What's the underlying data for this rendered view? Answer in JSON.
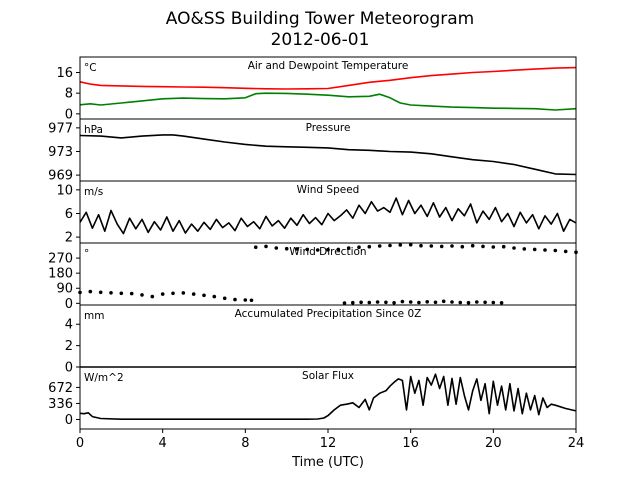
{
  "title": "AO&SS Building Tower Meteorogram",
  "subtitle": "2012-06-01",
  "xlabel": "Time (UTC)",
  "x_ticks": [
    0,
    4,
    8,
    12,
    16,
    20,
    24
  ],
  "chart_data": {
    "type": "line",
    "title": "AO&SS Building Tower Meteorogram",
    "subtitle": "2012-06-01",
    "xlabel": "Time (UTC)",
    "xlim": [
      0,
      24
    ],
    "panels": [
      {
        "title": "Air and Dewpoint Temperature",
        "unit": "°C",
        "ylim": [
          -2,
          22
        ],
        "yticks": [
          0,
          8,
          16
        ],
        "series": [
          {
            "color": "#ff0000",
            "style": "line",
            "x": [
              0,
              0.5,
              1,
              2,
              3,
              4,
              5,
              6,
              7,
              8,
              9,
              10,
              11,
              12,
              13,
              14,
              15,
              16,
              17,
              18,
              19,
              20,
              21,
              22,
              23,
              24
            ],
            "y": [
              12.4,
              11.5,
              11.0,
              10.8,
              10.6,
              10.5,
              10.4,
              10.3,
              10.1,
              9.9,
              9.7,
              9.6,
              9.7,
              9.8,
              11.0,
              12.2,
              13.0,
              14.0,
              14.8,
              15.4,
              16.0,
              16.4,
              16.9,
              17.3,
              17.7,
              17.9
            ]
          },
          {
            "color": "#008000",
            "style": "line",
            "x": [
              0,
              0.5,
              1,
              2,
              3,
              4,
              5,
              6,
              7,
              8,
              8.5,
              9,
              10,
              11,
              12,
              13,
              14,
              14.5,
              15,
              15.5,
              16,
              17,
              18,
              19,
              20,
              21,
              22,
              23,
              24
            ],
            "y": [
              3.5,
              3.9,
              3.4,
              4.2,
              5.0,
              5.8,
              6.1,
              5.9,
              5.8,
              6.2,
              7.8,
              8.0,
              7.9,
              7.6,
              7.2,
              6.6,
              6.8,
              7.6,
              6.2,
              4.2,
              3.4,
              3.0,
              2.6,
              2.4,
              2.2,
              2.1,
              2.0,
              1.5,
              2.0
            ]
          }
        ]
      },
      {
        "title": "Pressure",
        "unit": "hPa",
        "ylim": [
          968,
          978.5
        ],
        "yticks": [
          969,
          973,
          977
        ],
        "series": [
          {
            "color": "#000000",
            "style": "line",
            "x": [
              0,
              1,
              2,
              3,
              4,
              4.5,
              5,
              6,
              7,
              8,
              9,
              10,
              11,
              12,
              13,
              14,
              15,
              16,
              17,
              18,
              19,
              20,
              21,
              22,
              23,
              24
            ],
            "y": [
              975.7,
              975.6,
              975.3,
              975.6,
              975.8,
              975.8,
              975.6,
              975.1,
              974.6,
              974.2,
              973.9,
              973.8,
              973.7,
              973.6,
              973.3,
              973.2,
              973.0,
              972.9,
              972.6,
              972.1,
              971.6,
              971.3,
              970.8,
              970.0,
              969.2,
              969.1
            ]
          }
        ]
      },
      {
        "title": "Wind Speed",
        "unit": "m/s",
        "ylim": [
          1,
          11.5
        ],
        "yticks": [
          2,
          6,
          10
        ],
        "series": [
          {
            "color": "#000000",
            "style": "line",
            "x": [
              0,
              0.3,
              0.6,
              0.9,
              1.2,
              1.5,
              1.8,
              2.1,
              2.4,
              2.7,
              3,
              3.3,
              3.6,
              3.9,
              4.2,
              4.5,
              4.8,
              5.1,
              5.4,
              5.7,
              6,
              6.3,
              6.6,
              6.9,
              7.2,
              7.5,
              7.8,
              8.1,
              8.4,
              8.7,
              9,
              9.3,
              9.6,
              9.9,
              10.2,
              10.5,
              10.8,
              11.1,
              11.4,
              11.7,
              12,
              12.3,
              12.6,
              12.9,
              13.2,
              13.5,
              13.8,
              14.1,
              14.4,
              14.7,
              15,
              15.3,
              15.6,
              15.9,
              16.2,
              16.5,
              16.8,
              17.1,
              17.4,
              17.7,
              18,
              18.3,
              18.6,
              18.9,
              19.2,
              19.5,
              19.8,
              20.1,
              20.4,
              20.7,
              21,
              21.3,
              21.6,
              21.9,
              22.2,
              22.5,
              22.8,
              23.1,
              23.4,
              23.7,
              24
            ],
            "y": [
              4.5,
              6.2,
              3.5,
              5.8,
              3.0,
              6.5,
              4.2,
              2.6,
              5.2,
              3.4,
              5.0,
              2.8,
              4.6,
              3.2,
              5.4,
              3.0,
              4.8,
              2.7,
              4.2,
              3.0,
              4.5,
              3.3,
              5.0,
              3.6,
              4.4,
              3.1,
              5.2,
              3.8,
              4.6,
              3.4,
              5.5,
              3.9,
              4.8,
              3.5,
              5.2,
              4.0,
              5.8,
              4.3,
              5.3,
              4.1,
              6.0,
              4.8,
              5.6,
              6.6,
              5.2,
              7.4,
              6.0,
              8.0,
              6.4,
              7.0,
              6.2,
              8.6,
              5.8,
              8.2,
              6.0,
              7.4,
              5.5,
              7.8,
              5.4,
              7.0,
              4.8,
              6.8,
              5.6,
              7.6,
              4.4,
              6.4,
              5.0,
              7.0,
              4.6,
              6.0,
              3.8,
              6.2,
              4.4,
              5.8,
              3.4,
              5.6,
              4.2,
              6.0,
              3.0,
              5.0,
              4.4
            ]
          }
        ]
      },
      {
        "title": "Wind Direction",
        "unit": "°",
        "ylim": [
          -10,
          360
        ],
        "yticks": [
          0,
          90,
          180,
          270
        ],
        "series": [
          {
            "color": "#000000",
            "style": "dots",
            "x": [
              0,
              0.5,
              1,
              1.5,
              2,
              2.5,
              3,
              3.5,
              4,
              4.5,
              5,
              5.5,
              6,
              6.5,
              7,
              7.5,
              8,
              8.3,
              8.5,
              9,
              9.5,
              10,
              10.5,
              11,
              11.5,
              12,
              12.5,
              13,
              13.5,
              14,
              14.5,
              15,
              15.5,
              16,
              16.5,
              17,
              17.5,
              18,
              18.5,
              19,
              19.5,
              20,
              20.5,
              21,
              21.5,
              22,
              22.5,
              23,
              23.5,
              24
            ],
            "y": [
              65,
              70,
              66,
              63,
              60,
              58,
              50,
              40,
              55,
              60,
              62,
              55,
              48,
              40,
              30,
              22,
              20,
              18,
              335,
              340,
              330,
              326,
              325,
              322,
              318,
              320,
              322,
              330,
              335,
              338,
              342,
              345,
              348,
              350,
              344,
              342,
              340,
              342,
              338,
              344,
              340,
              336,
              338,
              330,
              325,
              322,
              318,
              315,
              310,
              305
            ]
          },
          {
            "color": "#000000",
            "style": "dots",
            "x": [
              12.8,
              13.2,
              13.6,
              14,
              14.4,
              14.8,
              15.2,
              15.6,
              16,
              16.4,
              16.8,
              17.2,
              17.6,
              18,
              18.4,
              18.8,
              19.2,
              19.6,
              20,
              20.4
            ],
            "y": [
              2,
              4,
              6,
              5,
              8,
              6,
              3,
              10,
              8,
              5,
              9,
              6,
              12,
              8,
              5,
              4,
              8,
              6,
              5,
              3
            ]
          }
        ]
      },
      {
        "title": "Accumulated Precipitation Since 0Z",
        "unit": "mm",
        "ylim": [
          0,
          5.8
        ],
        "yticks": [
          0,
          2,
          4
        ],
        "series": [
          {
            "color": "#000000",
            "style": "line",
            "x": [
              0,
              24
            ],
            "y": [
              0,
              0
            ]
          }
        ]
      },
      {
        "title": "Solar Flux",
        "unit": "W/m^2",
        "ylim": [
          -200,
          1100
        ],
        "yticks": [
          0,
          336,
          672
        ],
        "series": [
          {
            "color": "#000000",
            "style": "line",
            "x": [
              0,
              0.2,
              0.4,
              0.6,
              1,
              2,
              4,
              6,
              8,
              10,
              11,
              11.5,
              11.8,
              12,
              12.3,
              12.6,
              12.9,
              13.2,
              13.5,
              13.8,
              14,
              14.2,
              14.5,
              14.8,
              15,
              15.2,
              15.4,
              15.6,
              15.8,
              16,
              16.2,
              16.4,
              16.6,
              16.8,
              17,
              17.2,
              17.4,
              17.6,
              17.8,
              18,
              18.2,
              18.4,
              18.6,
              18.8,
              19,
              19.2,
              19.4,
              19.6,
              19.8,
              20,
              20.2,
              20.4,
              20.6,
              20.8,
              21,
              21.2,
              21.4,
              21.6,
              21.8,
              22,
              22.2,
              22.4,
              22.6,
              22.8,
              23,
              23.5,
              24
            ],
            "y": [
              130,
              120,
              140,
              60,
              20,
              5,
              5,
              5,
              5,
              5,
              5,
              10,
              30,
              80,
              200,
              300,
              320,
              350,
              250,
              420,
              200,
              450,
              550,
              600,
              700,
              780,
              850,
              820,
              200,
              900,
              550,
              820,
              300,
              880,
              720,
              950,
              650,
              900,
              300,
              860,
              320,
              880,
              500,
              200,
              600,
              850,
              400,
              750,
              120,
              800,
              300,
              700,
              200,
              750,
              180,
              650,
              120,
              550,
              200,
              500,
              100,
              450,
              250,
              320,
              300,
              230,
              180
            ]
          }
        ]
      }
    ]
  }
}
